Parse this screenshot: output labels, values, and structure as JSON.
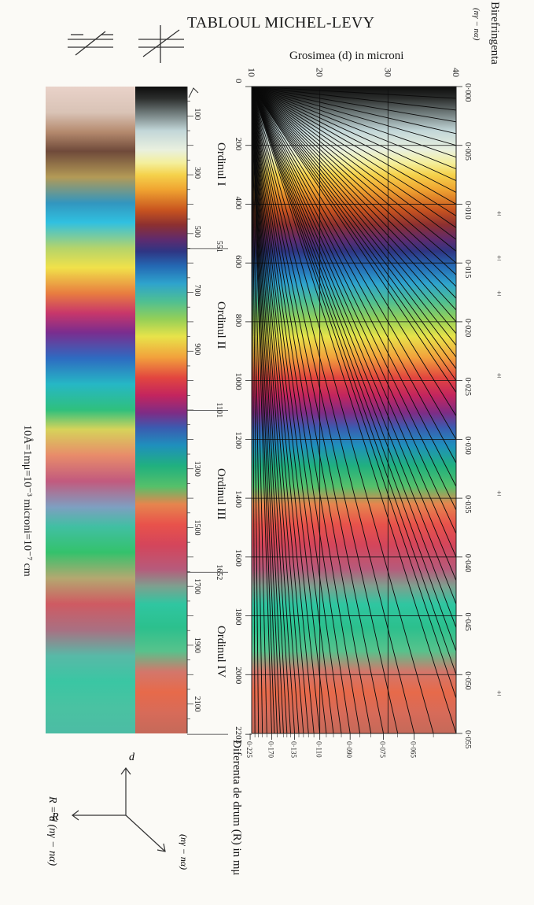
{
  "title": "TABLOUL MICHEL-LEVY",
  "x_axis_title": "Grosimea (d) in microni",
  "birefringence_title": "Birefringenta",
  "birefringence_symbol": "(nγ − nα)",
  "r_axis_title": "Diferenta de drum (R) in mμ",
  "conversion_note": "10Å=1mμ=10⁻³ microni=10⁻⁷ cm",
  "formula": "R = d (nγ − nα)",
  "vector_labels": {
    "d": "d",
    "r": "R",
    "n": "(nγ − nα)"
  },
  "orders": [
    "Ordinul I",
    "Ordinul II",
    "Ordinul III",
    "Ordinul IV"
  ],
  "chart_data": {
    "type": "line",
    "title": "TABLOUL MICHEL-LEVY",
    "xlabel": "Grosimea (d) in microni",
    "ylabel": "Diferenta de drum (R) in mμ",
    "right_label": "Birefringenta (nγ − nα)",
    "xlim": [
      10,
      40
    ],
    "ylim": [
      0,
      2200
    ],
    "x_ticks": [
      10,
      20,
      30,
      40
    ],
    "r_ticks_plot": [
      "0",
      "200",
      "400",
      "600",
      "800",
      "1000",
      "1200",
      "1400",
      "1600",
      "1800",
      "2000",
      "2203"
    ],
    "r_ticks_band": [
      "100",
      "300",
      "500",
      "551",
      "700",
      "900",
      "1101",
      "1300",
      "1500",
      "1652",
      "1700",
      "1900",
      "2100"
    ],
    "order_boundaries": [
      551,
      1101,
      1652,
      2203
    ],
    "biref_ticks": [
      "0·000",
      "0·005",
      "0·010",
      "0·015",
      "0·020",
      "0·025",
      "0·030",
      "0·035",
      "0·040",
      "0·045",
      "0·050",
      "0·055"
    ],
    "biref_values": [
      0.0,
      0.005,
      0.01,
      0.015,
      0.02,
      0.025,
      0.03,
      0.035,
      0.04,
      0.045,
      0.05,
      0.055
    ],
    "bottom_labels": [
      "0·225",
      "0·170",
      "0·135",
      "0·110",
      "0·090",
      "0·075",
      "0·065"
    ],
    "bottom_values": [
      0.225,
      0.17,
      0.135,
      0.11,
      0.09,
      0.075,
      0.065
    ],
    "bottom_minor_values": [
      0.21,
      0.2,
      0.19,
      0.18,
      0.16,
      0.15,
      0.145,
      0.14,
      0.13,
      0.125,
      0.12,
      0.115,
      0.105,
      0.1,
      0.095,
      0.085,
      0.08,
      0.07,
      0.06
    ],
    "biref_lines": [
      0.001,
      0.002,
      0.003,
      0.004,
      0.005,
      0.006,
      0.007,
      0.008,
      0.009,
      0.01,
      0.011,
      0.012,
      0.013,
      0.014,
      0.015,
      0.016,
      0.017,
      0.018,
      0.019,
      0.02,
      0.021,
      0.022,
      0.023,
      0.024,
      0.025,
      0.026,
      0.028,
      0.03,
      0.032,
      0.034,
      0.036,
      0.038,
      0.04,
      0.042,
      0.044,
      0.046,
      0.048,
      0.05,
      0.052,
      0.055,
      0.06,
      0.065,
      0.07,
      0.075,
      0.08,
      0.085,
      0.09,
      0.095,
      0.1,
      0.105,
      0.11,
      0.115,
      0.12,
      0.125,
      0.13,
      0.135,
      0.14,
      0.145,
      0.15,
      0.155,
      0.16,
      0.165,
      0.17,
      0.18,
      0.19,
      0.2,
      0.21,
      0.225
    ],
    "color_stops_retardation": [
      [
        0,
        "#0d0d0d"
      ],
      [
        40,
        "#2b2d2c"
      ],
      [
        100,
        "#7d8a8a"
      ],
      [
        150,
        "#c2d6d8"
      ],
      [
        215,
        "#e9f0df"
      ],
      [
        260,
        "#f4ef9b"
      ],
      [
        300,
        "#f5d24c"
      ],
      [
        350,
        "#f0a431"
      ],
      [
        420,
        "#c8541f"
      ],
      [
        470,
        "#8d3030"
      ],
      [
        520,
        "#5f2b6e"
      ],
      [
        560,
        "#2f3583"
      ],
      [
        610,
        "#2468b3"
      ],
      [
        670,
        "#2ea3cd"
      ],
      [
        730,
        "#4ebf93"
      ],
      [
        790,
        "#93cf58"
      ],
      [
        850,
        "#e8e34a"
      ],
      [
        920,
        "#f2a23c"
      ],
      [
        990,
        "#e2463f"
      ],
      [
        1050,
        "#c3255e"
      ],
      [
        1110,
        "#7e2c85"
      ],
      [
        1160,
        "#3b5bb0"
      ],
      [
        1220,
        "#1f8fbd"
      ],
      [
        1290,
        "#20b07f"
      ],
      [
        1360,
        "#55c06a"
      ],
      [
        1420,
        "#e6854e"
      ],
      [
        1490,
        "#e8524b"
      ],
      [
        1560,
        "#d4455b"
      ],
      [
        1640,
        "#b75a7a"
      ],
      [
        1700,
        "#7da08f"
      ],
      [
        1760,
        "#2fc6a1"
      ],
      [
        1840,
        "#2cc08d"
      ],
      [
        1920,
        "#57c28c"
      ],
      [
        1990,
        "#d3776b"
      ],
      [
        2060,
        "#e76a4a"
      ],
      [
        2130,
        "#d76b59"
      ],
      [
        2203,
        "#c56959"
      ]
    ],
    "sample_band_stops": [
      [
        0,
        "#e9d2c9"
      ],
      [
        0.04,
        "#d9c3b6"
      ],
      [
        0.07,
        "#b58a6e"
      ],
      [
        0.1,
        "#6f4a3a"
      ],
      [
        0.14,
        "#b39a56"
      ],
      [
        0.18,
        "#3296bf"
      ],
      [
        0.21,
        "#30c0e0"
      ],
      [
        0.25,
        "#b5d46a"
      ],
      [
        0.28,
        "#f1e14a"
      ],
      [
        0.32,
        "#e87c40"
      ],
      [
        0.35,
        "#c8376a"
      ],
      [
        0.38,
        "#7b2d8e"
      ],
      [
        0.42,
        "#2e6bc1"
      ],
      [
        0.46,
        "#26b7c5"
      ],
      [
        0.5,
        "#2fc07d"
      ],
      [
        0.53,
        "#d6d35a"
      ],
      [
        0.57,
        "#e88c6a"
      ],
      [
        0.61,
        "#c25a7e"
      ],
      [
        0.65,
        "#7e9fc1"
      ],
      [
        0.68,
        "#41bfa3"
      ],
      [
        0.72,
        "#34c26c"
      ],
      [
        0.76,
        "#b4a870"
      ],
      [
        0.8,
        "#cf5a62"
      ],
      [
        0.84,
        "#a97082"
      ],
      [
        0.88,
        "#58b9a7"
      ],
      [
        0.92,
        "#3ac6a3"
      ],
      [
        0.96,
        "#4ac2a2"
      ],
      [
        1,
        "#4cbca4"
      ]
    ]
  }
}
